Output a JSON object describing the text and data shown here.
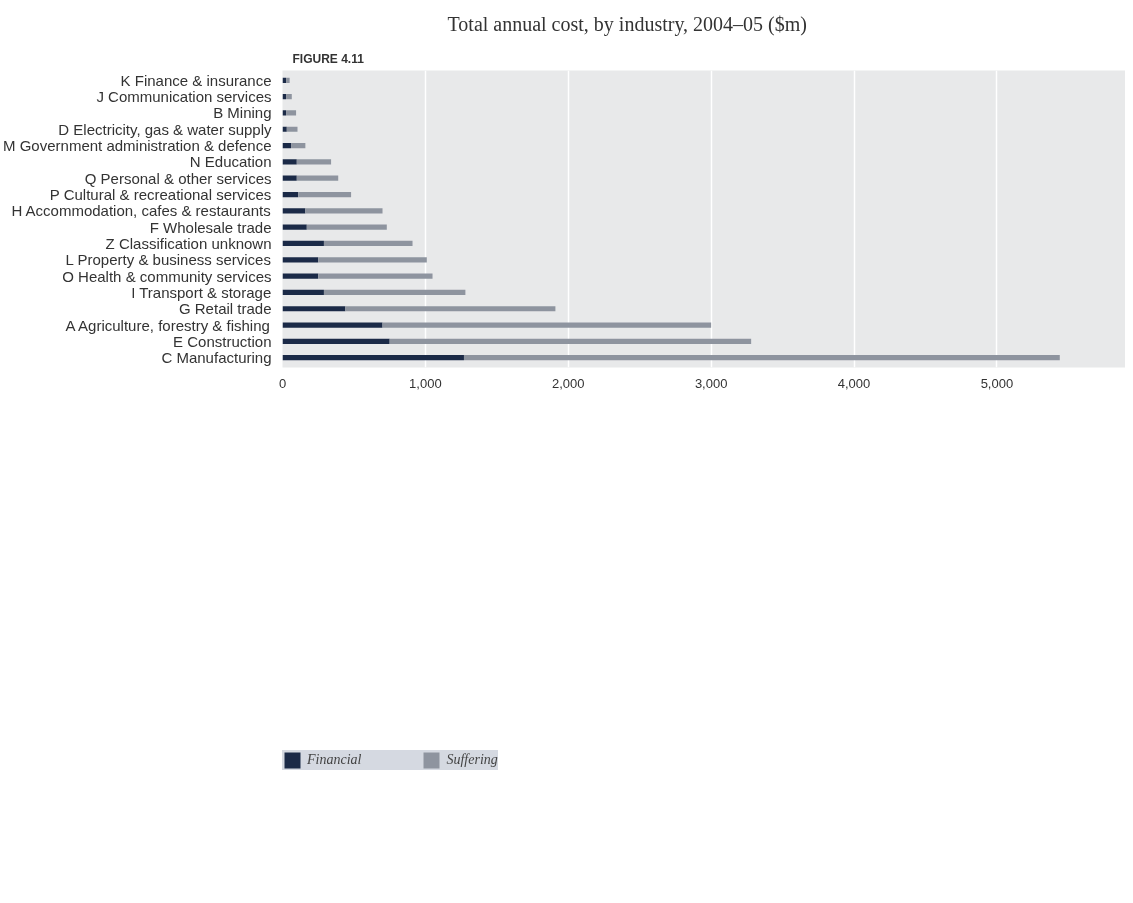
{
  "chart_data": {
    "type": "bar",
    "orientation": "horizontal",
    "stacked": true,
    "title": "Total annual cost, by industry, 2004–05 ($m)",
    "annotations": [
      "FIGURE 4.11"
    ],
    "categories": [
      "K Finance & insurance",
      "J Communication services",
      "B Mining",
      "D Electricity, gas & water supply",
      "M Government administration & defence",
      "N Education",
      "Q Personal & other services",
      "P Cultural & recreational services",
      "H Accommodation, cafes & restaurants",
      "F Wholesale trade",
      "Z Classification unknown",
      "L Property & business services",
      "O Health & community services",
      "I Transport & storage",
      "G Retail trade",
      "A Agriculture, forestry & fishing",
      "E Construction",
      "C Manufacturing"
    ],
    "series": [
      {
        "name": "Financial",
        "color": "#1b2a47",
        "values": [
          25,
          25,
          25,
          30,
          60,
          100,
          100,
          110,
          160,
          170,
          290,
          250,
          250,
          290,
          440,
          700,
          750,
          1270
        ]
      },
      {
        "name": "Suffering",
        "color": "#8e949f",
        "values": [
          25,
          40,
          70,
          75,
          100,
          240,
          290,
          370,
          540,
          560,
          620,
          760,
          800,
          990,
          1470,
          2300,
          2530,
          4170
        ]
      }
    ],
    "xlim": [
      0,
      5900
    ],
    "xticks": [
      0,
      {
        "value": 1000,
        "label": "1,000"
      },
      {
        "value": 2000,
        "label": "2,000"
      },
      {
        "value": 3000,
        "label": "3,000"
      },
      {
        "value": 4000,
        "label": "4,000"
      },
      {
        "value": 5000,
        "label": "5,000"
      }
    ],
    "grid": "x",
    "legend": "bottom left"
  }
}
